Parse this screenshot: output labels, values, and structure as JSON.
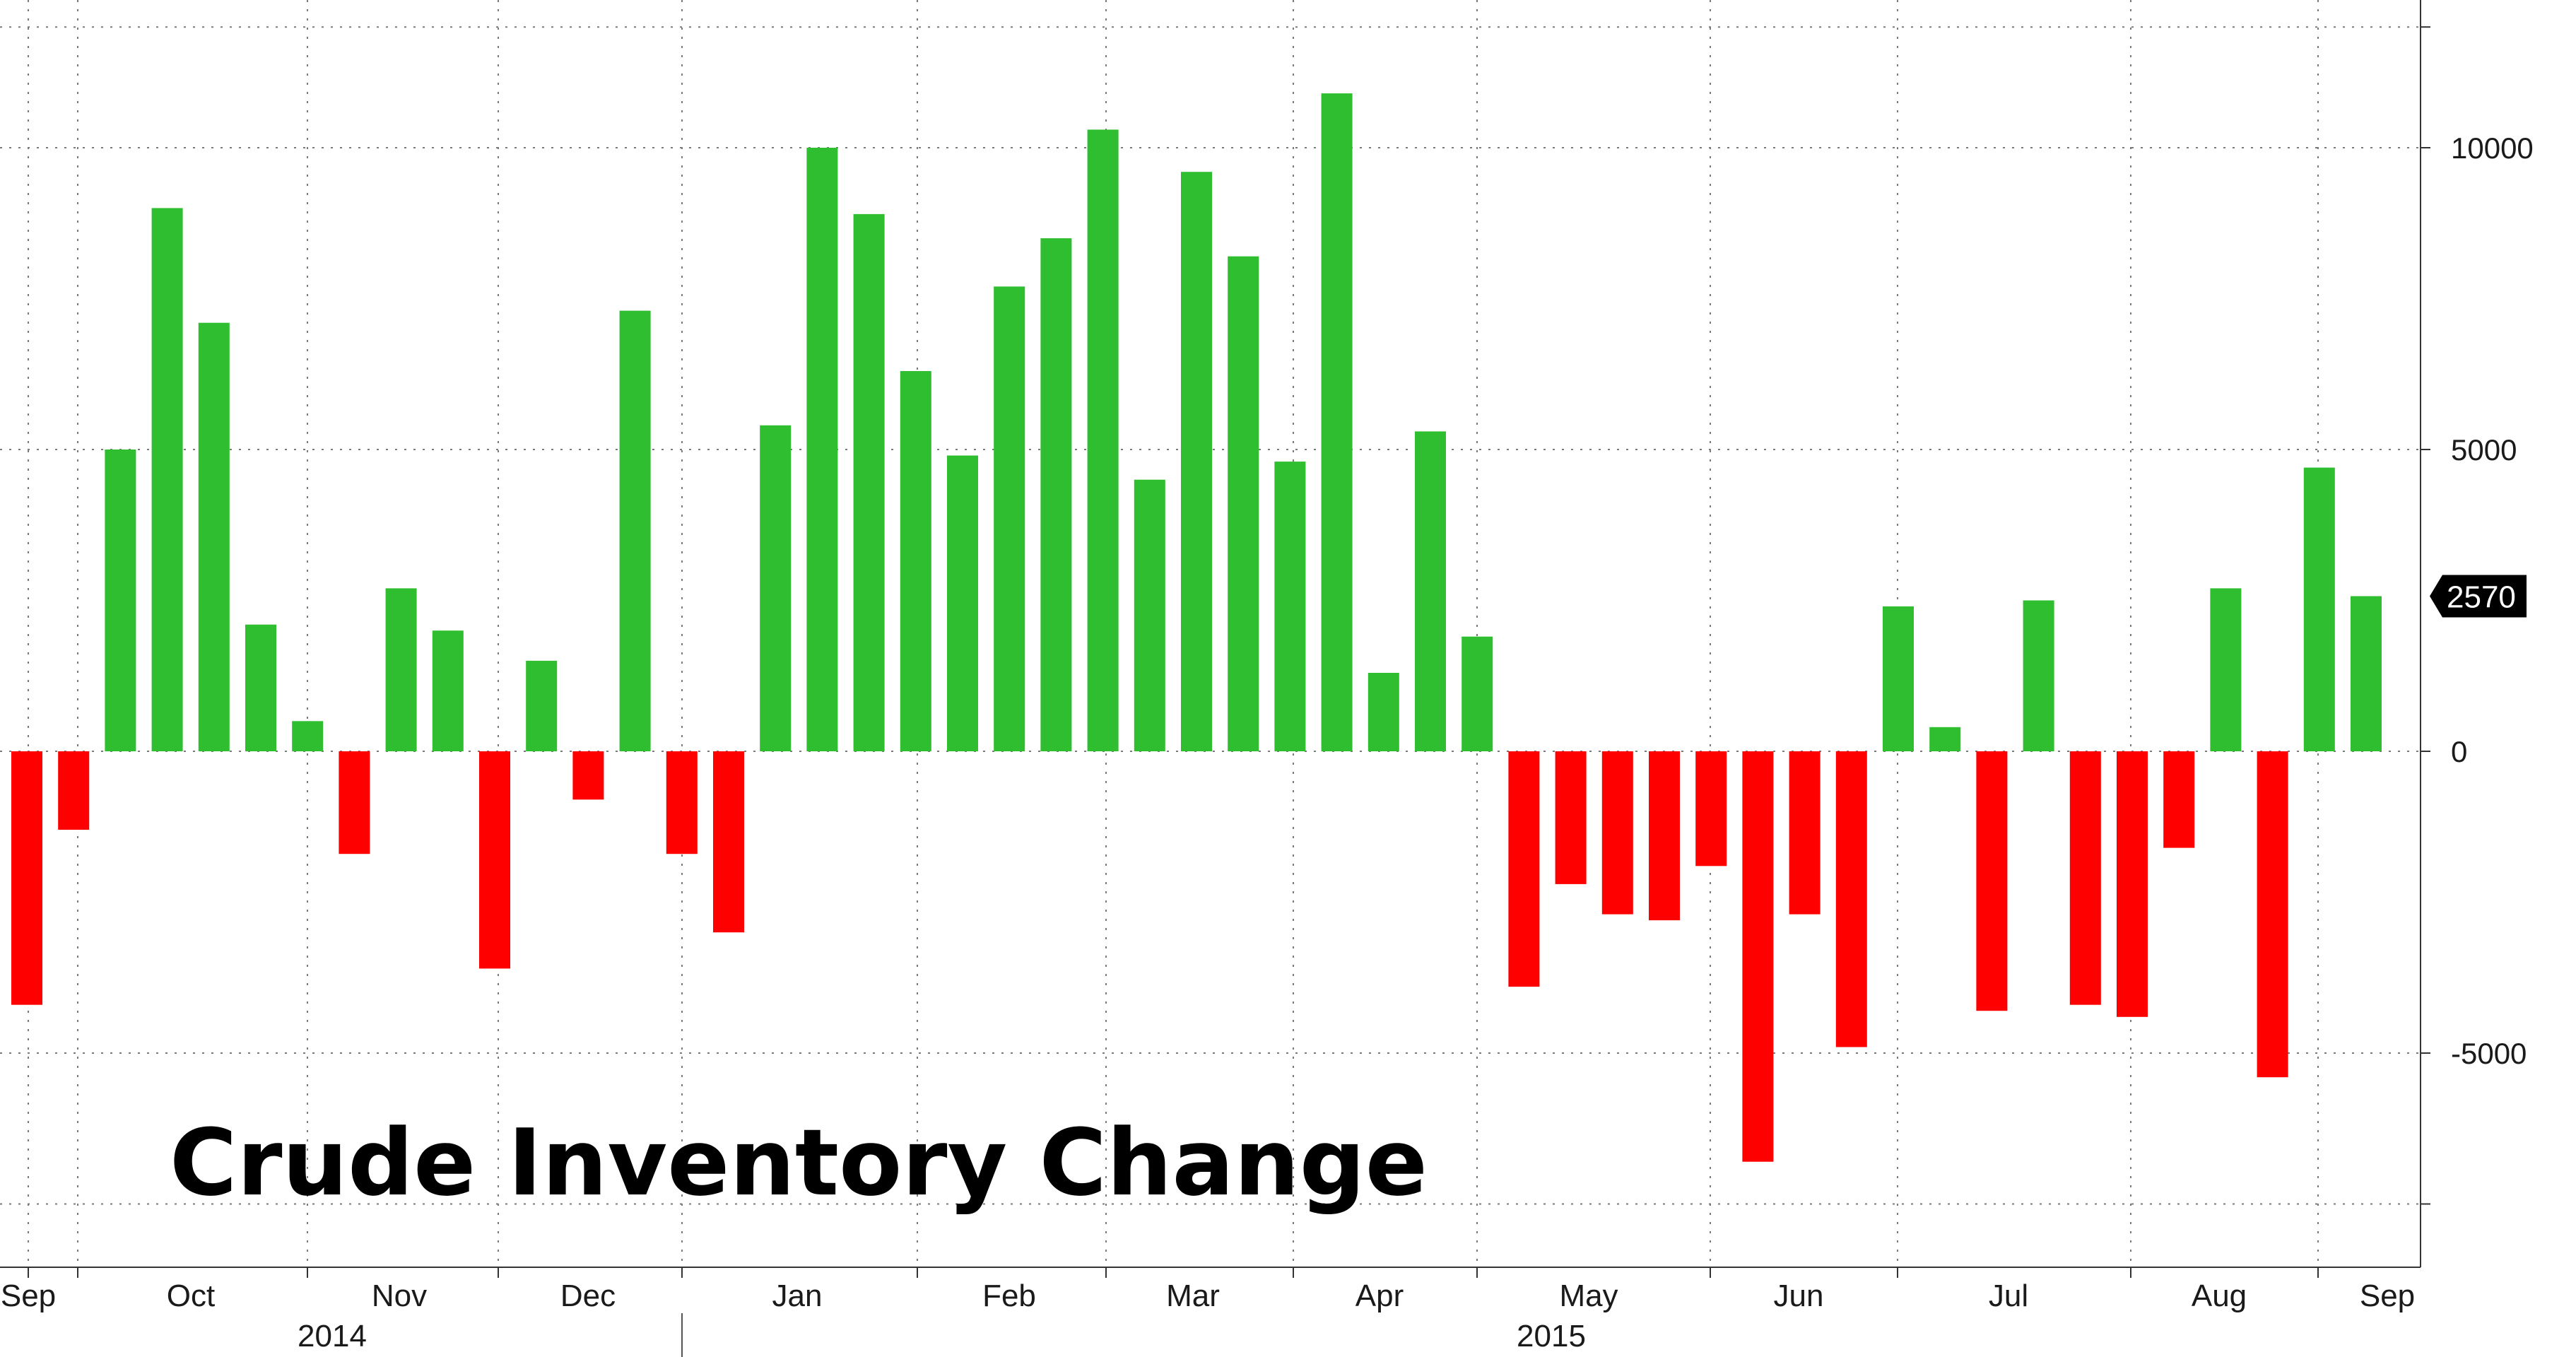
{
  "chart_data": {
    "type": "bar",
    "title": "Crude Inventory Change",
    "xlabel": "",
    "ylabel": "",
    "ylim": [
      -7800,
      12300
    ],
    "yticks": [
      10000,
      5000,
      0,
      -5000
    ],
    "ytick_labels": [
      "10000",
      "5000",
      "0",
      "-5000"
    ],
    "last_value_label": "2570",
    "grid": true,
    "y_axis_side": "right",
    "colors": {
      "positive": "#2fbe2f",
      "negative": "#ff0000",
      "badge": "#000000"
    },
    "month_labels": [
      "Sep",
      "Oct",
      "Nov",
      "Dec",
      "Jan",
      "Feb",
      "Mar",
      "Apr",
      "May",
      "Jun",
      "Jul",
      "Aug",
      "Sep"
    ],
    "year_labels": [
      "2014",
      "2015"
    ],
    "series": [
      {
        "values": [
          -4200,
          -1300,
          5000,
          9000,
          7100,
          2100,
          500,
          -1700,
          2700,
          2000,
          -3600,
          1500,
          -800,
          7300,
          -1700,
          -3000,
          5400,
          10000,
          8900,
          6300,
          4900,
          7700,
          8500,
          10300,
          4500,
          9600,
          8200,
          4800,
          10900,
          1300,
          5300,
          1900,
          -3900,
          -2200,
          -2700,
          -2800,
          -1900,
          -6800,
          -2700,
          -4900,
          2400,
          400,
          -4300,
          2500,
          -4200,
          -4400,
          -1600,
          2700,
          -5400,
          4700,
          2570
        ]
      }
    ]
  }
}
